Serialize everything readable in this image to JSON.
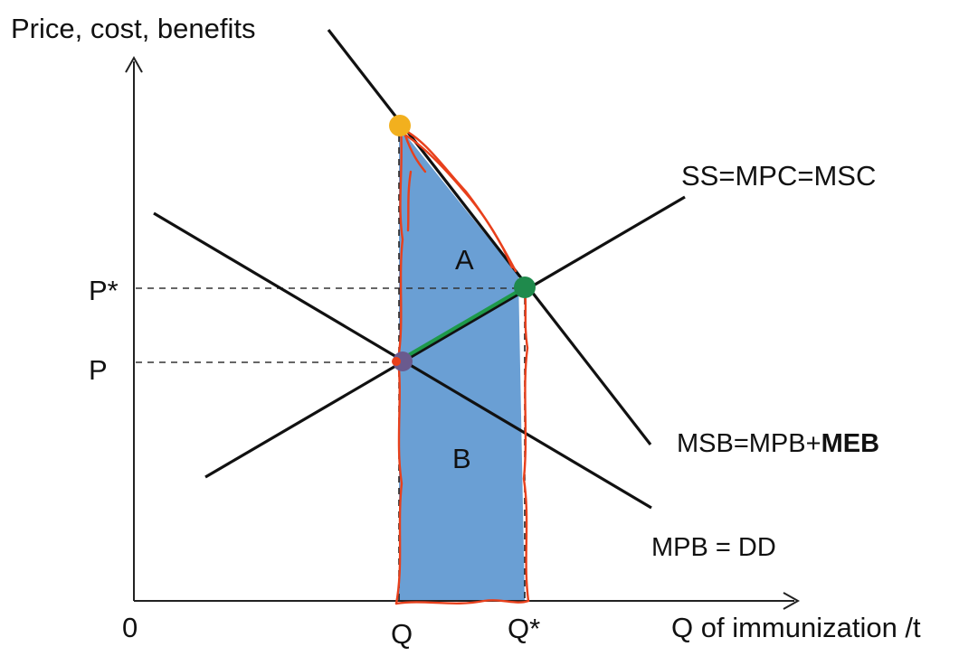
{
  "axis": {
    "y_label": "Price, cost, benefits",
    "x_label": "Q of immunization /t",
    "origin": "0"
  },
  "price_labels": {
    "p_star": "P*",
    "p": "P"
  },
  "quantity_labels": {
    "q": "Q",
    "q_star": "Q*"
  },
  "curves": {
    "supply": "SS=MPC=MSC",
    "msb_prefix": "MSB=MPB+",
    "msb_bold": "MEB",
    "demand": "MPB = DD"
  },
  "areas": {
    "a": "A",
    "b": "B"
  },
  "colors": {
    "area_fill": "#6a9fd4",
    "annotation_red": "#e8401c",
    "market_point": "#6a5a8e",
    "optimum_point": "#1f8a4c",
    "link_line": "#1e9a4a",
    "top_point": "#f2b01e",
    "line": "#111111"
  }
}
